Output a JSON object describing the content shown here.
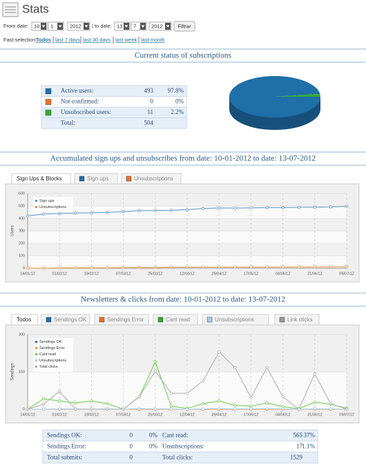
{
  "header": {
    "title": "Stats"
  },
  "filters": {
    "from_label": "From date:",
    "from": [
      "10",
      "1",
      "2012"
    ],
    "to_label": "| to date:",
    "to": [
      "13",
      "7",
      "2012"
    ],
    "button": "Filtrar",
    "fast_label": "Fast selection:",
    "fast_links": [
      "Todos",
      "last 7 days",
      "last 30 days",
      "last week",
      "last month"
    ]
  },
  "subscriptions": {
    "title": "Current status of subscriptions",
    "rows": [
      {
        "label": "Active users:",
        "count": 493,
        "percent": "97.8%",
        "color": "#1f6fa8"
      },
      {
        "label": "Not confirmed:",
        "count": 0,
        "percent": "0%",
        "color": "#e8702a"
      },
      {
        "label": "Unsubscribed users:",
        "count": 11,
        "percent": "2.2%",
        "color": "#33aa33"
      }
    ],
    "total_label": "Total:",
    "total": 504
  },
  "chart_data": [
    {
      "type": "line",
      "title": "Accumulated sign ups and unsubscribes from date: 10-01-2012 to date: 13-07-2012",
      "tabs": [
        {
          "label": "Sign Ups & Blocks"
        },
        {
          "label": "Sign ups",
          "color": "#1f6fa8"
        },
        {
          "label": "Unsubscriptions",
          "color": "#e8702a"
        }
      ],
      "ylabel": "Users",
      "categories": [
        "14/01/12",
        null,
        "01/02/12",
        null,
        "19/02/12",
        null,
        "07/03/12",
        null,
        "25/03/12",
        null,
        "12/04/12",
        null,
        "29/04/12",
        null,
        "17/05/12",
        null,
        "04/06/12",
        null,
        "21/06/12",
        null,
        "09/07/12"
      ],
      "series": [
        {
          "name": "Sign ups",
          "color": "#5b93c8",
          "values": [
            420,
            435,
            440,
            443,
            445,
            448,
            455,
            462,
            463,
            465,
            470,
            480,
            483,
            483,
            485,
            486,
            487,
            489,
            490,
            492,
            497
          ]
        },
        {
          "name": "Unsubscriptions",
          "color": "#e8913a",
          "values": [
            0,
            0,
            2,
            3,
            3,
            3,
            4,
            5,
            5,
            8,
            8,
            8,
            9,
            9,
            9,
            9,
            10,
            10,
            10,
            11,
            11
          ]
        }
      ],
      "ylim": [
        0,
        600
      ],
      "yticks": [
        0,
        100,
        200,
        300,
        400,
        500,
        600
      ],
      "grid": true
    },
    {
      "type": "line",
      "title": "Newsletters & clicks from date: 10-01-2012 to date: 13-07-2012",
      "tabs": [
        {
          "label": "Todos"
        },
        {
          "label": "Sendings OK",
          "color": "#1f6fa8"
        },
        {
          "label": "Sendings Error",
          "color": "#e8702a"
        },
        {
          "label": "Cant read",
          "color": "#33aa33"
        },
        {
          "label": "Unsubscriptions",
          "color": "#a8c8e8"
        },
        {
          "label": "Link clicks",
          "color": "#999999"
        }
      ],
      "ylabel": "Sendings",
      "categories": [
        "14/01/12",
        null,
        "01/02/12",
        null,
        "19/02/12",
        null,
        "07/03/12",
        null,
        "25/03/12",
        null,
        "12/04/12",
        null,
        "29/04/12",
        null,
        "17/05/12",
        null,
        "04/06/12",
        null,
        "21/06/12",
        null,
        "09/07/12"
      ],
      "series": [
        {
          "name": "Sendings OK",
          "color": "#3d6fb0",
          "values": [
            0,
            0,
            0,
            0,
            0,
            0,
            0,
            0,
            0,
            0,
            0,
            0,
            0,
            0,
            0,
            0,
            0,
            0,
            0,
            0,
            0
          ]
        },
        {
          "name": "Sendings Error",
          "color": "#e8913a",
          "values": [
            0,
            0,
            0,
            0,
            0,
            0,
            0,
            0,
            0,
            0,
            0,
            0,
            0,
            0,
            0,
            0,
            0,
            0,
            0,
            0,
            0
          ]
        },
        {
          "name": "Cant read",
          "color": "#66cc44",
          "values": [
            0,
            42,
            33,
            25,
            33,
            22,
            0,
            50,
            190,
            12,
            3,
            22,
            33,
            15,
            12,
            25,
            10,
            2,
            28,
            20,
            3
          ]
        },
        {
          "name": "Unsubscriptions",
          "color": "#a8c8e8",
          "values": [
            0,
            0,
            1,
            1,
            0,
            1,
            0,
            2,
            1,
            1,
            0,
            1,
            2,
            1,
            1,
            2,
            1,
            0,
            1,
            1,
            0
          ]
        },
        {
          "name": "Total clicks",
          "color": "#aaaaaa",
          "values": [
            0,
            20,
            72,
            0,
            0,
            0,
            0,
            50,
            153,
            64,
            64,
            114,
            230,
            167,
            47,
            167,
            50,
            0,
            142,
            22,
            0
          ]
        }
      ],
      "ylim": [
        0,
        300
      ],
      "yticks": [
        0,
        150,
        300
      ],
      "grid": true
    }
  ],
  "totals": {
    "rows": [
      [
        {
          "label": "Sendings OK:",
          "value": 0,
          "percent": "0%"
        },
        {
          "label": "Cant read:",
          "value": 565,
          "percent": "37%"
        }
      ],
      [
        {
          "label": "Sendings Error:",
          "value": 0,
          "percent": "0%"
        },
        {
          "label": "Unsubscriptions:",
          "value": 17,
          "percent": "1.1%"
        }
      ],
      [
        {
          "label": "Total submits:",
          "value": 0
        },
        {
          "label": "Total clicks:",
          "value": 1529
        }
      ]
    ]
  }
}
